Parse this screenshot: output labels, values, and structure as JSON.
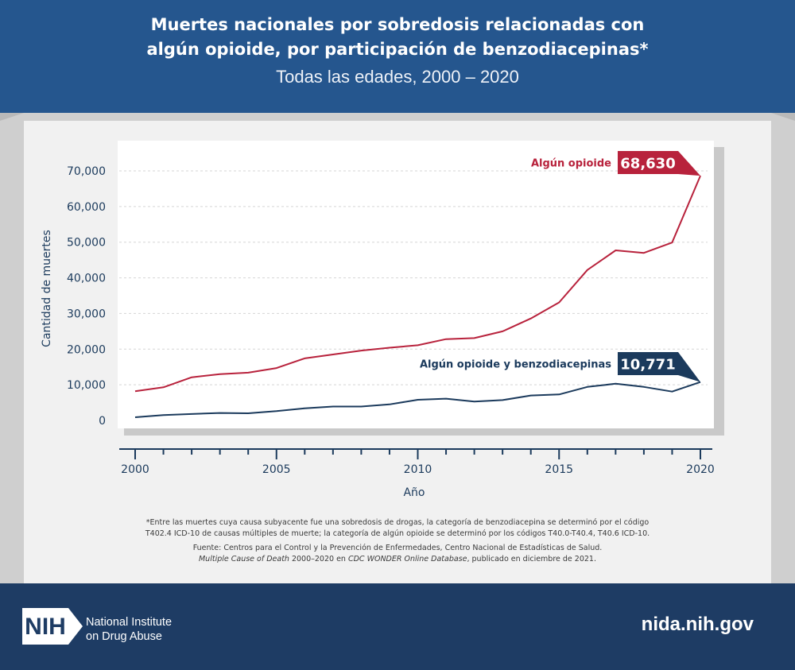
{
  "header": {
    "title_line1": "Muertes nacionales por sobredosis relacionadas con",
    "title_line2": "algún opioide, por participación de benzodiacepinas*",
    "subtitle": "Todas las edades, 2000 – 2020"
  },
  "chart_data": {
    "type": "line",
    "xlabel": "Año",
    "ylabel": "Cantidad de muertes",
    "xlim": [
      2000,
      2020
    ],
    "ylim": [
      0,
      70000
    ],
    "x_ticks": [
      2000,
      2005,
      2010,
      2015,
      2020
    ],
    "y_ticks": [
      "0",
      "10,000",
      "20,000",
      "30,000",
      "40,000",
      "50,000",
      "60,000",
      "70,000"
    ],
    "y_tick_values": [
      0,
      10000,
      20000,
      30000,
      40000,
      50000,
      60000,
      70000
    ],
    "x": [
      2000,
      2001,
      2002,
      2003,
      2004,
      2005,
      2006,
      2007,
      2008,
      2009,
      2010,
      2011,
      2012,
      2013,
      2014,
      2015,
      2016,
      2017,
      2018,
      2019,
      2020
    ],
    "grid": true,
    "series": [
      {
        "name": "Algún opioide",
        "color": "#b8223c",
        "values": [
          8200,
          9300,
          12100,
          13000,
          13400,
          14700,
          17400,
          18500,
          19600,
          20400,
          21100,
          22800,
          23100,
          25000,
          28600,
          33100,
          42200,
          47700,
          47000,
          49900,
          68630
        ],
        "end_label": "68,630"
      },
      {
        "name": "Algún opioide y benzodiacepinas",
        "color": "#1b3a5c",
        "values": [
          900,
          1500,
          1800,
          2100,
          2000,
          2600,
          3400,
          3900,
          3900,
          4500,
          5800,
          6100,
          5300,
          5700,
          7000,
          7300,
          9400,
          10300,
          9400,
          8100,
          10771
        ],
        "end_label": "10,771"
      }
    ]
  },
  "notes": {
    "footnote_line1": "*Entre las muertes cuya causa subyacente fue una sobredosis de drogas, la categoría de benzodiacepina se determinó por el código",
    "footnote_line2": "T402.4 ICD-10 de causas múltiples de muerte; la categoría de algún opioide se determinó por los códigos T40.0-T40.4, T40.6 ICD-10.",
    "source_line1": "Fuente: Centros para el Control y la Prevención de Enfermedades, Centro Nacional de Estadísticas de Salud.",
    "source_italic": "Multiple Cause of Death",
    "source_mid": " 2000–2020 en ",
    "source_italic2": "CDC WONDER Online Database",
    "source_end": ", publicado en diciembre de 2021."
  },
  "footer": {
    "logo_text": "NIH",
    "org_line1": "National Institute",
    "org_line2": "on Drug Abuse",
    "website": "nida.nih.gov"
  }
}
